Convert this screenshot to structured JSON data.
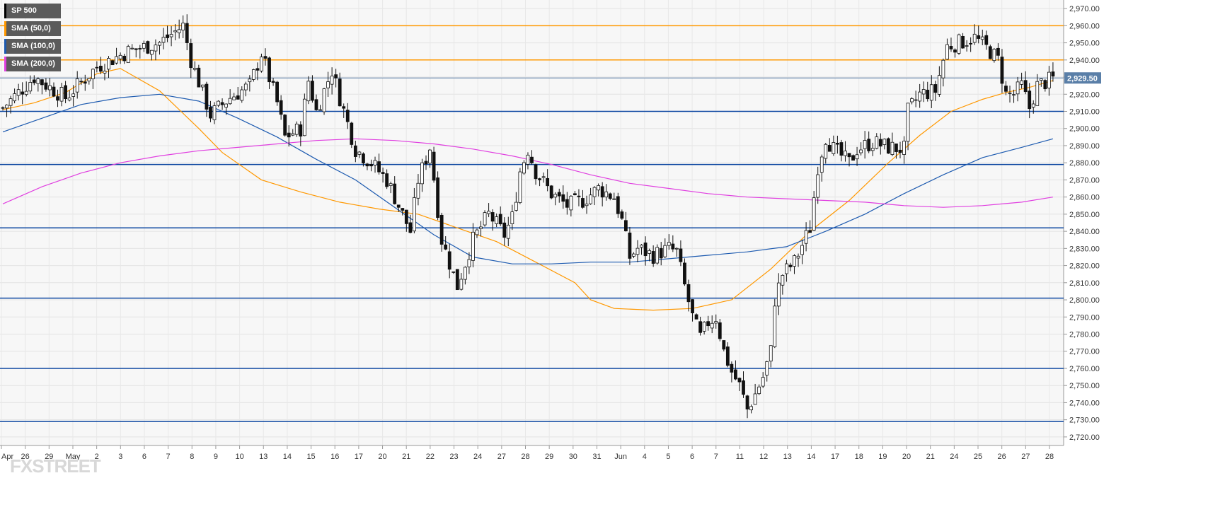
{
  "chart_data": {
    "type": "candlestick",
    "symbol": "SP 500",
    "last_price": 2929.5,
    "last_price_label": "2,929.50",
    "ylim": [
      2715,
      2975
    ],
    "y_ticks": [
      2720,
      2730,
      2740,
      2750,
      2760,
      2770,
      2780,
      2790,
      2800,
      2810,
      2820,
      2830,
      2840,
      2850,
      2860,
      2870,
      2880,
      2890,
      2900,
      2910,
      2920,
      2930,
      2940,
      2950,
      2960,
      2970
    ],
    "y_tick_labels": [
      "2,720.00",
      "2,730.00",
      "2,740.00",
      "2,750.00",
      "2,760.00",
      "2,770.00",
      "2,780.00",
      "2,790.00",
      "2,800.00",
      "2,810.00",
      "2,820.00",
      "2,830.00",
      "2,840.00",
      "2,850.00",
      "2,860.00",
      "2,870.00",
      "2,880.00",
      "2,890.00",
      "2,900.00",
      "2,910.00",
      "2,920.00",
      "2,930.00",
      "2,940.00",
      "2,950.00",
      "2,960.00",
      "2,970.00"
    ],
    "x_labels": [
      "Apr",
      "26",
      "29",
      "May",
      "2",
      "3",
      "6",
      "7",
      "8",
      "9",
      "10",
      "13",
      "14",
      "15",
      "16",
      "17",
      "20",
      "21",
      "22",
      "23",
      "24",
      "27",
      "28",
      "29",
      "30",
      "31",
      "Jun",
      "4",
      "5",
      "6",
      "7",
      "11",
      "12",
      "13",
      "14",
      "17",
      "18",
      "19",
      "20",
      "21",
      "24",
      "25",
      "26",
      "27",
      "28"
    ],
    "grid": true,
    "horizontal_levels": [
      {
        "value": 2960,
        "color": "#ff9800"
      },
      {
        "value": 2940,
        "color": "#ff9800"
      },
      {
        "value": 2910,
        "color": "#0d47a1"
      },
      {
        "value": 2879,
        "color": "#0d47a1"
      },
      {
        "value": 2842,
        "color": "#0d47a1"
      },
      {
        "value": 2801,
        "color": "#0d47a1"
      },
      {
        "value": 2760,
        "color": "#0d47a1"
      },
      {
        "value": 2729,
        "color": "#0d47a1"
      }
    ],
    "legend": [
      {
        "name": "SP 500",
        "color": "#000000"
      },
      {
        "name": "SMA (50,0)",
        "color": "#ff9800"
      },
      {
        "name": "SMA (100,0)",
        "color": "#1e5bb0"
      },
      {
        "name": "SMA (200,0)",
        "color": "#e040e0"
      }
    ],
    "candle_anchors": [
      [
        0,
        2912
      ],
      [
        8,
        2930
      ],
      [
        16,
        2918
      ],
      [
        24,
        2936
      ],
      [
        32,
        2945
      ],
      [
        40,
        2950
      ],
      [
        46,
        2960
      ],
      [
        48,
        2940
      ],
      [
        53,
        2908
      ],
      [
        58,
        2918
      ],
      [
        63,
        2925
      ],
      [
        66,
        2944
      ],
      [
        70,
        2915
      ],
      [
        72,
        2895
      ],
      [
        76,
        2900
      ],
      [
        78,
        2928
      ],
      [
        80,
        2910
      ],
      [
        84,
        2934
      ],
      [
        86,
        2918
      ],
      [
        90,
        2888
      ],
      [
        94,
        2880
      ],
      [
        98,
        2870
      ],
      [
        102,
        2850
      ],
      [
        104,
        2840
      ],
      [
        106,
        2870
      ],
      [
        109,
        2889
      ],
      [
        112,
        2835
      ],
      [
        116,
        2808
      ],
      [
        120,
        2835
      ],
      [
        124,
        2850
      ],
      [
        128,
        2838
      ],
      [
        130,
        2848
      ],
      [
        132,
        2875
      ],
      [
        134,
        2888
      ],
      [
        136,
        2875
      ],
      [
        140,
        2862
      ],
      [
        144,
        2855
      ],
      [
        148,
        2858
      ],
      [
        152,
        2865
      ],
      [
        156,
        2860
      ],
      [
        158,
        2846
      ],
      [
        160,
        2825
      ],
      [
        162,
        2830
      ],
      [
        166,
        2826
      ],
      [
        170,
        2830
      ],
      [
        172,
        2828
      ],
      [
        174,
        2808
      ],
      [
        176,
        2790
      ],
      [
        178,
        2778
      ],
      [
        180,
        2787
      ],
      [
        182,
        2790
      ],
      [
        184,
        2770
      ],
      [
        186,
        2758
      ],
      [
        188,
        2750
      ],
      [
        190,
        2736
      ],
      [
        192,
        2745
      ],
      [
        194,
        2755
      ],
      [
        196,
        2770
      ],
      [
        197,
        2800
      ],
      [
        199,
        2815
      ],
      [
        202,
        2822
      ],
      [
        204,
        2832
      ],
      [
        206,
        2842
      ],
      [
        207,
        2860
      ],
      [
        208,
        2878
      ],
      [
        210,
        2895
      ],
      [
        212,
        2888
      ],
      [
        216,
        2880
      ],
      [
        218,
        2888
      ],
      [
        222,
        2892
      ],
      [
        226,
        2889
      ],
      [
        230,
        2888
      ],
      [
        231,
        2910
      ],
      [
        234,
        2920
      ],
      [
        238,
        2922
      ],
      [
        240,
        2940
      ],
      [
        241,
        2948
      ],
      [
        244,
        2950
      ],
      [
        248,
        2953
      ],
      [
        252,
        2945
      ],
      [
        254,
        2940
      ],
      [
        256,
        2920
      ],
      [
        258,
        2920
      ],
      [
        260,
        2925
      ],
      [
        262,
        2912
      ],
      [
        264,
        2925
      ],
      [
        268,
        2929
      ]
    ],
    "series": [
      {
        "name": "SMA (50,0)",
        "color": "#ff9800",
        "values": [
          [
            0,
            2911
          ],
          [
            8,
            2915
          ],
          [
            16,
            2921
          ],
          [
            24,
            2932
          ],
          [
            30,
            2935
          ],
          [
            40,
            2922
          ],
          [
            50,
            2900
          ],
          [
            56,
            2886
          ],
          [
            66,
            2870
          ],
          [
            76,
            2863
          ],
          [
            86,
            2857
          ],
          [
            96,
            2853
          ],
          [
            106,
            2850
          ],
          [
            116,
            2842
          ],
          [
            126,
            2834
          ],
          [
            136,
            2822
          ],
          [
            146,
            2810
          ],
          [
            150,
            2800
          ],
          [
            156,
            2795
          ],
          [
            166,
            2794
          ],
          [
            176,
            2795
          ],
          [
            186,
            2800
          ],
          [
            196,
            2818
          ],
          [
            206,
            2840
          ],
          [
            216,
            2858
          ],
          [
            226,
            2880
          ],
          [
            234,
            2896
          ],
          [
            242,
            2910
          ],
          [
            250,
            2917
          ],
          [
            256,
            2921
          ],
          [
            262,
            2924
          ],
          [
            268,
            2928
          ]
        ]
      },
      {
        "name": "SMA (100,0)",
        "color": "#1e5bb0",
        "values": [
          [
            0,
            2898
          ],
          [
            10,
            2906
          ],
          [
            20,
            2914
          ],
          [
            30,
            2918
          ],
          [
            40,
            2920
          ],
          [
            50,
            2916
          ],
          [
            60,
            2906
          ],
          [
            70,
            2895
          ],
          [
            80,
            2882
          ],
          [
            90,
            2870
          ],
          [
            100,
            2854
          ],
          [
            110,
            2838
          ],
          [
            120,
            2825
          ],
          [
            130,
            2821
          ],
          [
            140,
            2821
          ],
          [
            150,
            2822
          ],
          [
            160,
            2822
          ],
          [
            170,
            2824
          ],
          [
            180,
            2826
          ],
          [
            190,
            2828
          ],
          [
            200,
            2831
          ],
          [
            210,
            2840
          ],
          [
            220,
            2850
          ],
          [
            230,
            2862
          ],
          [
            240,
            2873
          ],
          [
            250,
            2883
          ],
          [
            260,
            2889
          ],
          [
            268,
            2894
          ]
        ]
      },
      {
        "name": "SMA (200,0)",
        "color": "#e040e0",
        "values": [
          [
            0,
            2856
          ],
          [
            10,
            2866
          ],
          [
            20,
            2874
          ],
          [
            30,
            2880
          ],
          [
            40,
            2884
          ],
          [
            50,
            2887
          ],
          [
            60,
            2889
          ],
          [
            70,
            2891
          ],
          [
            80,
            2893
          ],
          [
            90,
            2894
          ],
          [
            100,
            2893
          ],
          [
            110,
            2891
          ],
          [
            120,
            2888
          ],
          [
            130,
            2884
          ],
          [
            140,
            2879
          ],
          [
            150,
            2873
          ],
          [
            160,
            2868
          ],
          [
            170,
            2865
          ],
          [
            180,
            2862
          ],
          [
            190,
            2860
          ],
          [
            200,
            2859
          ],
          [
            210,
            2858
          ],
          [
            220,
            2857
          ],
          [
            230,
            2855
          ],
          [
            240,
            2854
          ],
          [
            250,
            2855
          ],
          [
            260,
            2857
          ],
          [
            268,
            2860
          ]
        ]
      }
    ]
  },
  "brand": {
    "logo": "FXSTREET"
  }
}
